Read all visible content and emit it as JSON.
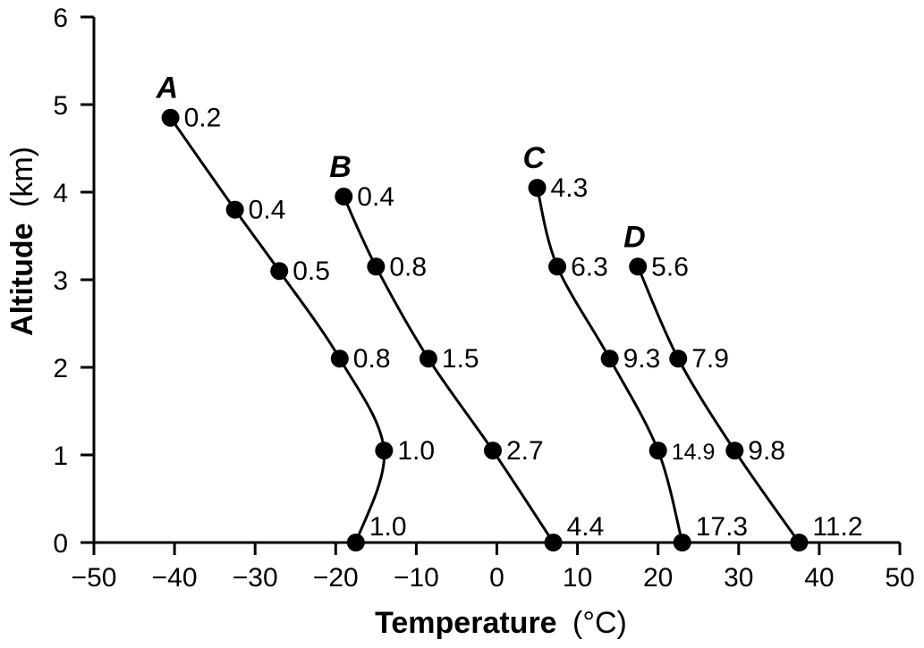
{
  "chart_data": {
    "type": "line",
    "xlabel": "Temperature",
    "xlabel_unit": "(°C)",
    "ylabel": "Altitude",
    "ylabel_unit": "(km)",
    "xlim": [
      -50,
      50
    ],
    "ylim": [
      0,
      6
    ],
    "x_ticks": [
      "−50",
      "−40",
      "−30",
      "−20",
      "−10",
      "0",
      "10",
      "20",
      "30",
      "40",
      "50"
    ],
    "y_ticks": [
      "0",
      "1",
      "2",
      "3",
      "4",
      "5",
      "6"
    ],
    "grid": false,
    "series": [
      {
        "name": "A",
        "points": [
          {
            "x": -17.5,
            "y": 0.0,
            "label": "1.0"
          },
          {
            "x": -14,
            "y": 1.05,
            "label": "1.0"
          },
          {
            "x": -19.5,
            "y": 2.1,
            "label": "0.8"
          },
          {
            "x": -27,
            "y": 3.1,
            "label": "0.5"
          },
          {
            "x": -32.5,
            "y": 3.8,
            "label": "0.4"
          },
          {
            "x": -40.5,
            "y": 4.85,
            "label": "0.2"
          }
        ]
      },
      {
        "name": "B",
        "points": [
          {
            "x": 7,
            "y": 0.0,
            "label": "4.4"
          },
          {
            "x": -0.5,
            "y": 1.05,
            "label": "2.7"
          },
          {
            "x": -8.5,
            "y": 2.1,
            "label": "1.5"
          },
          {
            "x": -15,
            "y": 3.15,
            "label": "0.8"
          },
          {
            "x": -19,
            "y": 3.95,
            "label": "0.4"
          }
        ]
      },
      {
        "name": "C",
        "points": [
          {
            "x": 23,
            "y": 0.0,
            "label": "17.3"
          },
          {
            "x": 20,
            "y": 1.05,
            "label": "14.9"
          },
          {
            "x": 14,
            "y": 2.1,
            "label": "9.3"
          },
          {
            "x": 7.5,
            "y": 3.15,
            "label": "6.3"
          },
          {
            "x": 5,
            "y": 4.05,
            "label": "4.3"
          }
        ]
      },
      {
        "name": "D",
        "points": [
          {
            "x": 37.5,
            "y": 0.0,
            "label": "11.2"
          },
          {
            "x": 29.5,
            "y": 1.05,
            "label": "9.8"
          },
          {
            "x": 22.5,
            "y": 2.1,
            "label": "7.9"
          },
          {
            "x": 17.5,
            "y": 3.15,
            "label": "5.6"
          }
        ]
      }
    ]
  }
}
